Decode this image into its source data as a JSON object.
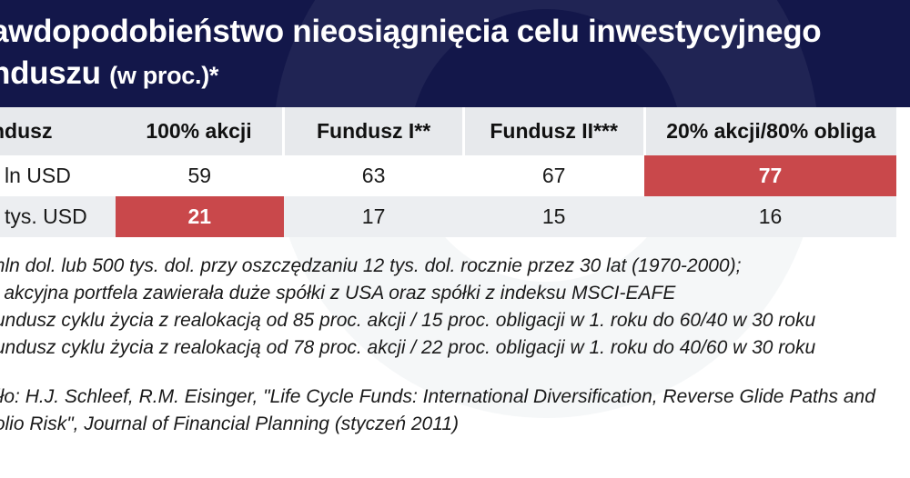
{
  "title": {
    "main": "awdopodobieństwo nieosiągnięcia celu inwestycyjnego",
    "line2": "nduszu",
    "unit": "(w proc.)*"
  },
  "chart_data": {
    "type": "table",
    "columns": [
      "ndusz",
      "100% akcji",
      "Fundusz I**",
      "Fundusz II***",
      "20% akcji/80% obliga"
    ],
    "rows": [
      {
        "label": "ln USD",
        "values": [
          59,
          63,
          67,
          77
        ]
      },
      {
        "label": "tys. USD",
        "values": [
          21,
          17,
          15,
          16
        ]
      }
    ],
    "highlight_color": "#c9484b",
    "highlighted_cells": [
      {
        "row": 0,
        "col": 3
      },
      {
        "row": 1,
        "col": 0
      }
    ]
  },
  "notes": [
    "mln dol. lub 500 tys. dol. przy oszczędzaniu 12 tys. dol. rocznie przez 30 lat (1970-2000);",
    "ć akcyjna portfela zawierała duże spółki z USA oraz spółki z indeksu MSCI-EAFE",
    "fundusz cyklu życia z realokacją od 85 proc. akcji / 15 proc. obligacji w 1. roku do 60/40 w 30 roku",
    "fundusz cyklu życia z realokacją od 78 proc. akcji / 22 proc. obligacji w 1. roku do 40/60 w 30 roku"
  ],
  "source": {
    "line1": "dło: H.J. Schleef, R.M. Eisinger, \"Life Cycle Funds: International Diversification, Reverse Glide Paths and",
    "line2": "folio Risk\", Journal of Financial Planning (styczeń 2011)"
  },
  "colors": {
    "header_bg": "#13174a",
    "highlight": "#c9484b",
    "row_alt": "#eceef1",
    "header_row": "#e7e9ec"
  }
}
